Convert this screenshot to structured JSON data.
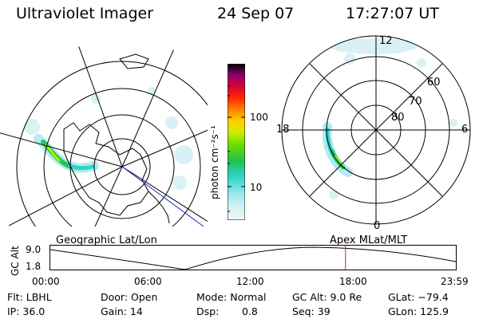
{
  "header": {
    "title": "Ultraviolet Imager",
    "date": "24 Sep 07",
    "time": "17:27:07 UT"
  },
  "colorbar": {
    "unit_label": "photon cm⁻²s⁻¹",
    "ticks": [
      "100",
      "10"
    ]
  },
  "geo_map": {
    "label": "Geographic Lat/Lon"
  },
  "polar_map": {
    "label": "Apex MLat/MLT",
    "mlt_labels": {
      "top": "12",
      "left": "18",
      "right": "6",
      "bottom": "0"
    },
    "lat_labels": [
      "60",
      "70",
      "80"
    ]
  },
  "alt_plot": {
    "ylabel": "GC Alt",
    "yticks": [
      "9.0",
      "1.8"
    ],
    "xticks": [
      "00:00",
      "06:00",
      "12:00",
      "18:00",
      "23:59"
    ],
    "current_time_hours": 17.45
  },
  "info": {
    "row1": {
      "flt": "Flt: LBHL",
      "door": "Door: Open",
      "mode": "Mode: Normal",
      "gcalt": "GC Alt: 9.0 Re",
      "glat": "GLat: −79.4"
    },
    "row2": {
      "ip": "IP: 36.0",
      "gain": "Gain: 14",
      "dsp_label": "Dsp:",
      "dsp_value": "0.8",
      "seq": "Seq: 39",
      "glon": "GLon: 125.9"
    }
  },
  "colors": {
    "colorbar_stops": [
      "#e8f4f6",
      "#9fe6ec",
      "#2fd3c8",
      "#22c45a",
      "#7ee000",
      "#d8f000",
      "#ffd200",
      "#ff8a00",
      "#ff2a00",
      "#d0003c",
      "#9a0070",
      "#3a0050",
      "#000000"
    ],
    "current_time_line": "#cc2200"
  }
}
